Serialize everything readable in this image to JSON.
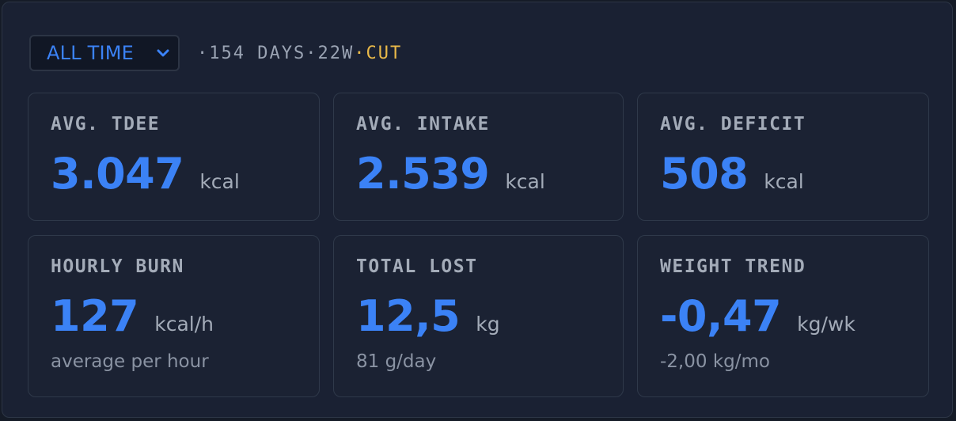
{
  "header": {
    "range_select": {
      "value": "ALL TIME"
    },
    "meta": {
      "sep1": "·",
      "days": "154 DAYS",
      "sep2": "·",
      "weeks": "22W",
      "sep3": "·",
      "phase": "CUT"
    }
  },
  "cards": [
    {
      "label": "AVG. TDEE",
      "value": "3.047",
      "unit": "kcal"
    },
    {
      "label": "AVG. INTAKE",
      "value": "2.539",
      "unit": "kcal"
    },
    {
      "label": "AVG. DEFICIT",
      "value": "508",
      "unit": "kcal"
    },
    {
      "label": "HOURLY BURN",
      "value": "127",
      "unit": "kcal/h",
      "sub": "average per hour"
    },
    {
      "label": "TOTAL LOST",
      "value": "12,5",
      "unit": "kg",
      "sub": "81 g/day"
    },
    {
      "label": "WEIGHT TREND",
      "value": "-0,47",
      "unit": "kg/wk",
      "sub": "-2,00 kg/mo"
    }
  ],
  "colors": {
    "accent": "#3b82f6",
    "phase": "#e9b949",
    "background": "#1a2133"
  },
  "icons": {
    "range_select": "chevron-down-icon"
  }
}
